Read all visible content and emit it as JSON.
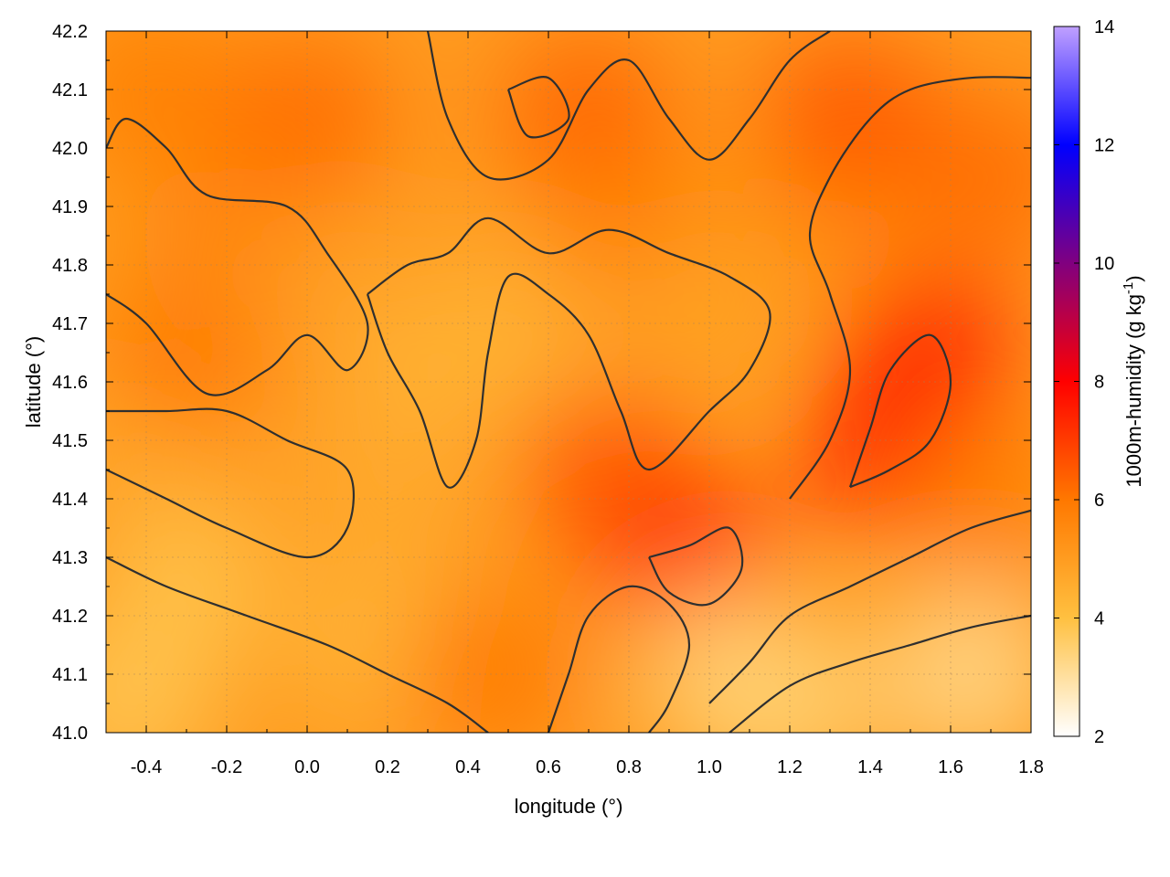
{
  "chart_data": {
    "type": "heatmap",
    "subtype": "geographic contour map",
    "title": "",
    "xlabel": "longitude (°)",
    "ylabel": "latitude (°)",
    "xlim": [
      -0.5,
      1.8
    ],
    "ylim": [
      41.0,
      42.2
    ],
    "x_ticks": [
      -0.4,
      -0.2,
      0.0,
      0.2,
      0.4,
      0.6,
      0.8,
      1.0,
      1.2,
      1.4,
      1.6,
      1.8
    ],
    "x_tick_labels": [
      "-0.4",
      "-0.2",
      "0.0",
      "0.2",
      "0.4",
      "0.6",
      "0.8",
      "1.0",
      "1.2",
      "1.4",
      "1.6",
      "1.8"
    ],
    "y_ticks": [
      41.0,
      41.1,
      41.2,
      41.3,
      41.4,
      41.5,
      41.6,
      41.7,
      41.8,
      41.9,
      42.0,
      42.1,
      42.2
    ],
    "y_tick_labels": [
      "41.0",
      "41.1",
      "41.2",
      "41.3",
      "41.4",
      "41.5",
      "41.6",
      "41.7",
      "41.8",
      "41.9",
      "42.0",
      "42.1",
      "42.2"
    ],
    "grid": true,
    "colorbar": {
      "label_main": "1000m-humidity (g kg",
      "label_sup": "-1",
      "label_end": ")",
      "range": [
        2,
        14
      ],
      "ticks": [
        2,
        4,
        6,
        8,
        10,
        12,
        14
      ],
      "tick_labels": [
        "2",
        "4",
        "6",
        "8",
        "10",
        "12",
        "14"
      ],
      "colors": [
        {
          "value": 2,
          "color": "#ffffff"
        },
        {
          "value": 4,
          "color": "#ffc040"
        },
        {
          "value": 6,
          "color": "#ff7800"
        },
        {
          "value": 8,
          "color": "#ff0000"
        },
        {
          "value": 10,
          "color": "#800080"
        },
        {
          "value": 12,
          "color": "#0000ff"
        },
        {
          "value": 14,
          "color": "#c0a0ff"
        }
      ]
    },
    "field_samples": [
      {
        "lon": -0.45,
        "lat": 41.05,
        "value": 3.8
      },
      {
        "lon": -0.3,
        "lat": 41.25,
        "value": 3.9
      },
      {
        "lon": -0.4,
        "lat": 41.5,
        "value": 4.6
      },
      {
        "lon": -0.3,
        "lat": 41.65,
        "value": 6.0
      },
      {
        "lon": -0.2,
        "lat": 41.85,
        "value": 5.6
      },
      {
        "lon": -0.4,
        "lat": 42.1,
        "value": 5.8
      },
      {
        "lon": 0.0,
        "lat": 42.05,
        "value": 6.2
      },
      {
        "lon": 0.1,
        "lat": 41.75,
        "value": 4.9
      },
      {
        "lon": 0.3,
        "lat": 41.6,
        "value": 4.3
      },
      {
        "lon": 0.2,
        "lat": 41.45,
        "value": 4.6
      },
      {
        "lon": 0.2,
        "lat": 41.15,
        "value": 4.2
      },
      {
        "lon": 0.45,
        "lat": 41.1,
        "value": 6.0
      },
      {
        "lon": 0.55,
        "lat": 41.7,
        "value": 4.4
      },
      {
        "lon": 0.7,
        "lat": 42.05,
        "value": 6.4
      },
      {
        "lon": 0.8,
        "lat": 41.85,
        "value": 5.8
      },
      {
        "lon": 0.75,
        "lat": 41.45,
        "value": 6.6
      },
      {
        "lon": 0.95,
        "lat": 41.3,
        "value": 7.2
      },
      {
        "lon": 1.0,
        "lat": 41.7,
        "value": 4.8
      },
      {
        "lon": 1.05,
        "lat": 41.1,
        "value": 3.4
      },
      {
        "lon": 1.3,
        "lat": 41.9,
        "value": 5.4
      },
      {
        "lon": 1.45,
        "lat": 41.5,
        "value": 7.8
      },
      {
        "lon": 1.55,
        "lat": 41.65,
        "value": 7.4
      },
      {
        "lon": 1.35,
        "lat": 42.05,
        "value": 6.6
      },
      {
        "lon": 1.7,
        "lat": 41.95,
        "value": 6.2
      },
      {
        "lon": 1.7,
        "lat": 41.4,
        "value": 5.8
      },
      {
        "lon": 1.65,
        "lat": 41.1,
        "value": 3.2
      },
      {
        "lon": 1.2,
        "lat": 41.05,
        "value": 3.5
      }
    ],
    "contour_lines": [
      {
        "name": "contour-south-west",
        "points": [
          [
            -0.5,
            41.3
          ],
          [
            -0.35,
            41.25
          ],
          [
            -0.15,
            41.2
          ],
          [
            0.05,
            41.15
          ],
          [
            0.2,
            41.1
          ],
          [
            0.35,
            41.05
          ],
          [
            0.45,
            41.0
          ]
        ]
      },
      {
        "name": "contour-west-basin",
        "points": [
          [
            -0.5,
            41.45
          ],
          [
            -0.35,
            41.4
          ],
          [
            -0.2,
            41.35
          ],
          [
            0.0,
            41.3
          ],
          [
            0.1,
            41.35
          ],
          [
            0.1,
            41.45
          ],
          [
            -0.05,
            41.5
          ],
          [
            -0.2,
            41.55
          ],
          [
            -0.35,
            41.55
          ],
          [
            -0.5,
            41.55
          ]
        ]
      },
      {
        "name": "contour-north-west",
        "points": [
          [
            -0.5,
            41.75
          ],
          [
            -0.4,
            41.7
          ],
          [
            -0.25,
            41.58
          ],
          [
            -0.1,
            41.62
          ],
          [
            0.0,
            41.68
          ],
          [
            0.1,
            41.62
          ],
          [
            0.15,
            41.7
          ],
          [
            0.05,
            41.82
          ],
          [
            -0.05,
            41.9
          ],
          [
            -0.25,
            41.92
          ],
          [
            -0.35,
            42.0
          ],
          [
            -0.45,
            42.05
          ],
          [
            -0.5,
            42.0
          ]
        ]
      },
      {
        "name": "contour-central-tongue",
        "points": [
          [
            0.15,
            41.75
          ],
          [
            0.2,
            41.65
          ],
          [
            0.28,
            41.55
          ],
          [
            0.35,
            41.42
          ],
          [
            0.42,
            41.5
          ],
          [
            0.45,
            41.65
          ],
          [
            0.5,
            41.78
          ],
          [
            0.6,
            41.75
          ],
          [
            0.7,
            41.68
          ],
          [
            0.78,
            41.55
          ],
          [
            0.85,
            41.45
          ],
          [
            1.0,
            41.55
          ],
          [
            1.1,
            41.62
          ],
          [
            1.15,
            41.72
          ],
          [
            1.05,
            41.78
          ],
          [
            0.9,
            41.82
          ],
          [
            0.75,
            41.86
          ],
          [
            0.6,
            41.82
          ],
          [
            0.45,
            41.88
          ],
          [
            0.35,
            41.82
          ],
          [
            0.25,
            41.8
          ],
          [
            0.15,
            41.75
          ]
        ]
      },
      {
        "name": "contour-east-ridge",
        "points": [
          [
            1.2,
            41.4
          ],
          [
            1.3,
            41.5
          ],
          [
            1.35,
            41.62
          ],
          [
            1.3,
            41.75
          ],
          [
            1.25,
            41.85
          ],
          [
            1.3,
            41.95
          ],
          [
            1.4,
            42.05
          ],
          [
            1.5,
            42.1
          ],
          [
            1.65,
            42.12
          ],
          [
            1.8,
            42.12
          ]
        ]
      },
      {
        "name": "contour-east-core",
        "points": [
          [
            1.35,
            41.42
          ],
          [
            1.45,
            41.45
          ],
          [
            1.55,
            41.5
          ],
          [
            1.6,
            41.6
          ],
          [
            1.55,
            41.68
          ],
          [
            1.45,
            41.62
          ],
          [
            1.4,
            41.52
          ],
          [
            1.35,
            41.42
          ]
        ]
      },
      {
        "name": "contour-south-east",
        "points": [
          [
            1.0,
            41.05
          ],
          [
            1.1,
            41.12
          ],
          [
            1.2,
            41.2
          ],
          [
            1.35,
            41.25
          ],
          [
            1.5,
            41.3
          ],
          [
            1.65,
            41.35
          ],
          [
            1.8,
            41.38
          ]
        ]
      },
      {
        "name": "contour-coast",
        "points": [
          [
            1.05,
            41.0
          ],
          [
            1.2,
            41.08
          ],
          [
            1.35,
            41.12
          ],
          [
            1.5,
            41.15
          ],
          [
            1.65,
            41.18
          ],
          [
            1.8,
            41.2
          ]
        ]
      },
      {
        "name": "contour-delta",
        "points": [
          [
            0.6,
            41.0
          ],
          [
            0.65,
            41.1
          ],
          [
            0.7,
            41.2
          ],
          [
            0.8,
            41.25
          ],
          [
            0.9,
            41.22
          ],
          [
            0.95,
            41.15
          ],
          [
            0.9,
            41.05
          ],
          [
            0.85,
            41.0
          ]
        ]
      },
      {
        "name": "contour-hill-south",
        "points": [
          [
            0.85,
            41.3
          ],
          [
            0.95,
            41.32
          ],
          [
            1.05,
            41.35
          ],
          [
            1.08,
            41.28
          ],
          [
            1.0,
            41.22
          ],
          [
            0.9,
            41.24
          ],
          [
            0.85,
            41.3
          ]
        ]
      },
      {
        "name": "contour-north-center",
        "points": [
          [
            0.3,
            42.2
          ],
          [
            0.35,
            42.05
          ],
          [
            0.45,
            41.95
          ],
          [
            0.6,
            41.98
          ],
          [
            0.7,
            42.1
          ],
          [
            0.8,
            42.15
          ],
          [
            0.9,
            42.05
          ],
          [
            1.0,
            41.98
          ],
          [
            1.1,
            42.05
          ],
          [
            1.2,
            42.15
          ],
          [
            1.3,
            42.2
          ]
        ]
      },
      {
        "name": "contour-north-loop",
        "points": [
          [
            0.5,
            42.1
          ],
          [
            0.6,
            42.12
          ],
          [
            0.65,
            42.05
          ],
          [
            0.55,
            42.02
          ],
          [
            0.5,
            42.1
          ]
        ]
      }
    ]
  }
}
